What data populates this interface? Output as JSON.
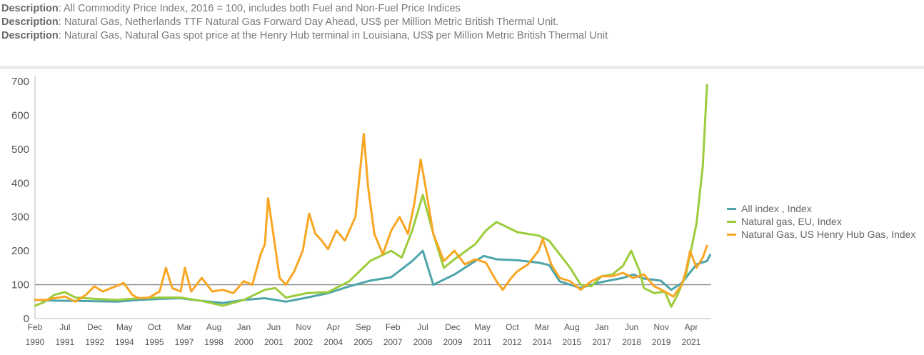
{
  "descriptions": [
    {
      "key": "Description",
      "sep": ": ",
      "text": "All Commodity Price Index, 2016 = 100, includes both Fuel and Non-Fuel Price Indices"
    },
    {
      "key": "Description",
      "sep": ": ",
      "text": "Natural Gas, Netherlands TTF Natural Gas Forward Day Ahead, US$ per Million Metric British Thermal Unit."
    },
    {
      "key": "Description",
      "sep": ": ",
      "text": "Natural Gas, Natural Gas spot price at the Henry Hub terminal in Louisiana, US$ per Million Metric British Thermal Unit"
    }
  ],
  "colors": {
    "all_index": "#4ea4ab",
    "eu": "#9ccc3c",
    "us": "#f8a623",
    "baseline": "#8c8c8c",
    "axis": "#bbbbbb"
  },
  "chart_data": {
    "type": "line",
    "title": "",
    "xlabel": "",
    "ylabel": "",
    "ylim": [
      0,
      700
    ],
    "yticks": [
      0,
      100,
      200,
      300,
      400,
      500,
      600,
      700
    ],
    "xlim": [
      1990.08,
      2022.2
    ],
    "xticks": [
      {
        "value": 1990.08,
        "month": "Feb",
        "year": "1990"
      },
      {
        "value": 1991.5,
        "month": "Jul",
        "year": "1991"
      },
      {
        "value": 1992.92,
        "month": "Dec",
        "year": "1992"
      },
      {
        "value": 1994.33,
        "month": "May",
        "year": "1994"
      },
      {
        "value": 1995.75,
        "month": "Oct",
        "year": "1995"
      },
      {
        "value": 1997.17,
        "month": "Mar",
        "year": "1997"
      },
      {
        "value": 1998.58,
        "month": "Aug",
        "year": "1998"
      },
      {
        "value": 2000.0,
        "month": "Jan",
        "year": "2000"
      },
      {
        "value": 2001.42,
        "month": "Jun",
        "year": "2001"
      },
      {
        "value": 2002.83,
        "month": "Nov",
        "year": "2002"
      },
      {
        "value": 2004.25,
        "month": "Apr",
        "year": "2004"
      },
      {
        "value": 2005.67,
        "month": "Sep",
        "year": "2005"
      },
      {
        "value": 2007.08,
        "month": "Feb",
        "year": "2007"
      },
      {
        "value": 2008.5,
        "month": "Jul",
        "year": "2008"
      },
      {
        "value": 2009.92,
        "month": "Dec",
        "year": "2009"
      },
      {
        "value": 2011.33,
        "month": "May",
        "year": "2011"
      },
      {
        "value": 2012.75,
        "month": "Oct",
        "year": "2012"
      },
      {
        "value": 2014.17,
        "month": "Mar",
        "year": "2014"
      },
      {
        "value": 2015.58,
        "month": "Aug",
        "year": "2015"
      },
      {
        "value": 2017.0,
        "month": "Jan",
        "year": "2017"
      },
      {
        "value": 2018.42,
        "month": "Jun",
        "year": "2018"
      },
      {
        "value": 2019.83,
        "month": "Nov",
        "year": "2019"
      },
      {
        "value": 2021.25,
        "month": "Apr",
        "year": "2021"
      }
    ],
    "reference_line": 100,
    "grid": false,
    "legend_position": "right",
    "series": [
      {
        "name": "All index , Index",
        "color": "#4ea4ab",
        "points": [
          [
            1990.08,
            55
          ],
          [
            1991.0,
            53
          ],
          [
            1992.0,
            52
          ],
          [
            1993.0,
            51
          ],
          [
            1994.0,
            50
          ],
          [
            1995.0,
            55
          ],
          [
            1996.0,
            58
          ],
          [
            1997.0,
            60
          ],
          [
            1998.0,
            52
          ],
          [
            1999.0,
            46
          ],
          [
            2000.0,
            55
          ],
          [
            2001.0,
            60
          ],
          [
            2002.0,
            50
          ],
          [
            2003.0,
            62
          ],
          [
            2004.0,
            75
          ],
          [
            2005.0,
            95
          ],
          [
            2006.0,
            112
          ],
          [
            2007.0,
            122
          ],
          [
            2008.0,
            170
          ],
          [
            2008.5,
            200
          ],
          [
            2009.0,
            100
          ],
          [
            2010.0,
            130
          ],
          [
            2011.0,
            170
          ],
          [
            2011.4,
            185
          ],
          [
            2012.0,
            175
          ],
          [
            2013.0,
            172
          ],
          [
            2014.0,
            165
          ],
          [
            2014.5,
            158
          ],
          [
            2015.0,
            110
          ],
          [
            2016.0,
            90
          ],
          [
            2016.5,
            100
          ],
          [
            2017.0,
            108
          ],
          [
            2018.0,
            120
          ],
          [
            2018.5,
            130
          ],
          [
            2019.0,
            118
          ],
          [
            2019.8,
            112
          ],
          [
            2020.3,
            85
          ],
          [
            2020.8,
            105
          ],
          [
            2021.5,
            160
          ],
          [
            2022.0,
            170
          ],
          [
            2022.15,
            188
          ]
        ]
      },
      {
        "name": "Natural gas, EU, Index",
        "color": "#9ccc3c",
        "points": [
          [
            1990.08,
            38
          ],
          [
            1990.5,
            48
          ],
          [
            1991.0,
            70
          ],
          [
            1991.5,
            78
          ],
          [
            1992.0,
            62
          ],
          [
            1993.0,
            58
          ],
          [
            1994.0,
            55
          ],
          [
            1995.0,
            60
          ],
          [
            1996.0,
            62
          ],
          [
            1997.0,
            62
          ],
          [
            1998.0,
            52
          ],
          [
            1999.0,
            38
          ],
          [
            2000.0,
            55
          ],
          [
            2001.0,
            85
          ],
          [
            2001.5,
            90
          ],
          [
            2002.0,
            62
          ],
          [
            2003.0,
            75
          ],
          [
            2004.0,
            78
          ],
          [
            2005.0,
            110
          ],
          [
            2006.0,
            170
          ],
          [
            2007.0,
            200
          ],
          [
            2007.5,
            180
          ],
          [
            2008.0,
            260
          ],
          [
            2008.5,
            365
          ],
          [
            2009.0,
            250
          ],
          [
            2009.5,
            150
          ],
          [
            2010.0,
            175
          ],
          [
            2011.0,
            220
          ],
          [
            2011.5,
            260
          ],
          [
            2012.0,
            285
          ],
          [
            2012.5,
            270
          ],
          [
            2013.0,
            255
          ],
          [
            2014.0,
            245
          ],
          [
            2014.5,
            230
          ],
          [
            2015.0,
            190
          ],
          [
            2015.5,
            150
          ],
          [
            2016.0,
            100
          ],
          [
            2016.5,
            95
          ],
          [
            2017.0,
            125
          ],
          [
            2017.5,
            130
          ],
          [
            2018.0,
            155
          ],
          [
            2018.4,
            200
          ],
          [
            2018.8,
            140
          ],
          [
            2019.0,
            90
          ],
          [
            2019.5,
            75
          ],
          [
            2020.0,
            80
          ],
          [
            2020.3,
            35
          ],
          [
            2020.6,
            70
          ],
          [
            2021.0,
            130
          ],
          [
            2021.5,
            280
          ],
          [
            2021.8,
            450
          ],
          [
            2022.0,
            690
          ]
        ]
      },
      {
        "name": "Natural Gas, US Henry Hub Gas, Index",
        "color": "#f8a623",
        "points": [
          [
            1990.08,
            55
          ],
          [
            1990.6,
            55
          ],
          [
            1991.0,
            60
          ],
          [
            1991.5,
            65
          ],
          [
            1992.0,
            50
          ],
          [
            1992.5,
            70
          ],
          [
            1992.9,
            95
          ],
          [
            1993.3,
            80
          ],
          [
            1993.7,
            90
          ],
          [
            1994.3,
            105
          ],
          [
            1994.7,
            70
          ],
          [
            1995.0,
            60
          ],
          [
            1995.5,
            62
          ],
          [
            1996.0,
            80
          ],
          [
            1996.3,
            150
          ],
          [
            1996.6,
            90
          ],
          [
            1997.0,
            80
          ],
          [
            1997.2,
            150
          ],
          [
            1997.5,
            80
          ],
          [
            1998.0,
            120
          ],
          [
            1998.5,
            80
          ],
          [
            1999.0,
            85
          ],
          [
            1999.5,
            75
          ],
          [
            2000.0,
            110
          ],
          [
            2000.4,
            100
          ],
          [
            2000.8,
            190
          ],
          [
            2001.0,
            220
          ],
          [
            2001.15,
            355
          ],
          [
            2001.4,
            250
          ],
          [
            2001.7,
            120
          ],
          [
            2002.0,
            100
          ],
          [
            2002.4,
            140
          ],
          [
            2002.8,
            200
          ],
          [
            2003.1,
            310
          ],
          [
            2003.4,
            250
          ],
          [
            2003.7,
            230
          ],
          [
            2004.0,
            205
          ],
          [
            2004.4,
            260
          ],
          [
            2004.8,
            230
          ],
          [
            2005.3,
            300
          ],
          [
            2005.7,
            545
          ],
          [
            2005.9,
            390
          ],
          [
            2006.2,
            250
          ],
          [
            2006.6,
            190
          ],
          [
            2007.0,
            260
          ],
          [
            2007.4,
            300
          ],
          [
            2007.8,
            250
          ],
          [
            2008.1,
            340
          ],
          [
            2008.4,
            470
          ],
          [
            2008.6,
            400
          ],
          [
            2009.0,
            250
          ],
          [
            2009.5,
            170
          ],
          [
            2010.0,
            200
          ],
          [
            2010.5,
            160
          ],
          [
            2011.0,
            175
          ],
          [
            2011.5,
            165
          ],
          [
            2012.0,
            110
          ],
          [
            2012.3,
            85
          ],
          [
            2012.7,
            120
          ],
          [
            2013.0,
            140
          ],
          [
            2013.5,
            160
          ],
          [
            2014.0,
            200
          ],
          [
            2014.2,
            235
          ],
          [
            2014.6,
            160
          ],
          [
            2015.0,
            120
          ],
          [
            2015.5,
            110
          ],
          [
            2016.0,
            85
          ],
          [
            2016.5,
            110
          ],
          [
            2017.0,
            125
          ],
          [
            2017.5,
            125
          ],
          [
            2018.0,
            135
          ],
          [
            2018.5,
            120
          ],
          [
            2019.0,
            130
          ],
          [
            2019.5,
            95
          ],
          [
            2020.0,
            80
          ],
          [
            2020.4,
            65
          ],
          [
            2020.8,
            100
          ],
          [
            2021.0,
            140
          ],
          [
            2021.2,
            200
          ],
          [
            2021.5,
            150
          ],
          [
            2021.8,
            180
          ],
          [
            2022.0,
            215
          ]
        ]
      }
    ]
  }
}
